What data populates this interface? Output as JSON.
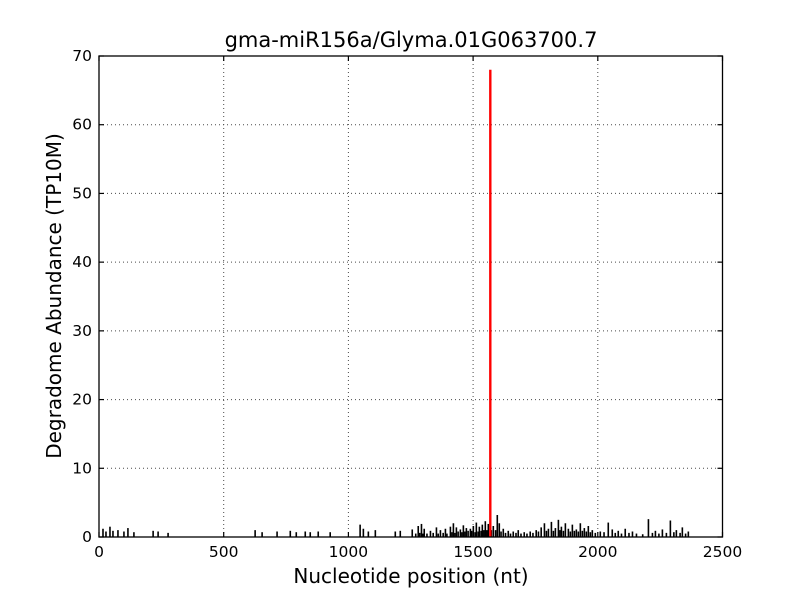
{
  "figure": {
    "title": "gma-miR156a/Glyma.01G063700.7",
    "xlabel": "Nucleotide position (nt)",
    "ylabel": "Degradome Abundance (TP10M)"
  },
  "chart_data": {
    "type": "bar",
    "title": "gma-miR156a/Glyma.01G063700.7",
    "xlabel": "Nucleotide position (nt)",
    "ylabel": "Degradome Abundance (TP10M)",
    "xlim": [
      0,
      2500
    ],
    "ylim": [
      0,
      70
    ],
    "x_ticks": [
      0,
      500,
      1000,
      1500,
      2000,
      2500
    ],
    "y_ticks": [
      0,
      10,
      20,
      30,
      40,
      50,
      60,
      70
    ],
    "grid": true,
    "grid_style": "dotted",
    "legend_position": "none",
    "colors": {
      "background": "#ffffff",
      "frame": "#000000",
      "grid": "#4a4a4a",
      "noise": "#000000",
      "peak": "#ff0000"
    },
    "peak": {
      "x": 1569,
      "value": 68,
      "color": "#ff0000"
    },
    "noise_points": [
      [
        16,
        1.2
      ],
      [
        28,
        0.8
      ],
      [
        44,
        1.5
      ],
      [
        56,
        0.9
      ],
      [
        76,
        1.0
      ],
      [
        100,
        0.8
      ],
      [
        116,
        1.3
      ],
      [
        140,
        0.7
      ],
      [
        217,
        0.9
      ],
      [
        237,
        0.8
      ],
      [
        277,
        0.6
      ],
      [
        626,
        1.0
      ],
      [
        654,
        0.7
      ],
      [
        714,
        0.8
      ],
      [
        767,
        0.9
      ],
      [
        791,
        0.7
      ],
      [
        827,
        0.8
      ],
      [
        847,
        0.7
      ],
      [
        879,
        0.8
      ],
      [
        927,
        0.7
      ],
      [
        1047,
        1.8
      ],
      [
        1060,
        1.2
      ],
      [
        1080,
        0.8
      ],
      [
        1108,
        1.0
      ],
      [
        1188,
        0.8
      ],
      [
        1208,
        0.9
      ],
      [
        1256,
        1.1
      ],
      [
        1270,
        0.5
      ],
      [
        1280,
        1.6
      ],
      [
        1286,
        0.6
      ],
      [
        1293,
        1.9
      ],
      [
        1298,
        0.5
      ],
      [
        1304,
        1.2
      ],
      [
        1315,
        0.5
      ],
      [
        1329,
        0.9
      ],
      [
        1340,
        0.6
      ],
      [
        1353,
        1.4
      ],
      [
        1360,
        0.5
      ],
      [
        1369,
        1.0
      ],
      [
        1380,
        0.6
      ],
      [
        1389,
        1.2
      ],
      [
        1395,
        0.5
      ],
      [
        1409,
        1.5
      ],
      [
        1415,
        0.7
      ],
      [
        1421,
        2.0
      ],
      [
        1427,
        0.6
      ],
      [
        1433,
        1.4
      ],
      [
        1440,
        0.8
      ],
      [
        1449,
        1.1
      ],
      [
        1455,
        0.7
      ],
      [
        1461,
        1.7
      ],
      [
        1467,
        0.8
      ],
      [
        1473,
        1.3
      ],
      [
        1480,
        0.9
      ],
      [
        1489,
        1.2
      ],
      [
        1494,
        0.9
      ],
      [
        1501,
        1.6
      ],
      [
        1508,
        0.7
      ],
      [
        1513,
        2.1
      ],
      [
        1520,
        0.8
      ],
      [
        1525,
        1.5
      ],
      [
        1532,
        0.9
      ],
      [
        1537,
        1.8
      ],
      [
        1543,
        1.0
      ],
      [
        1549,
        2.3
      ],
      [
        1555,
        1.0
      ],
      [
        1561,
        1.9
      ],
      [
        1573,
        1.0
      ],
      [
        1581,
        1.6
      ],
      [
        1590,
        1.0
      ],
      [
        1597,
        3.2
      ],
      [
        1605,
        2.0
      ],
      [
        1612,
        0.8
      ],
      [
        1621,
        1.2
      ],
      [
        1630,
        0.6
      ],
      [
        1641,
        0.9
      ],
      [
        1650,
        0.5
      ],
      [
        1661,
        0.8
      ],
      [
        1672,
        0.6
      ],
      [
        1681,
        1.0
      ],
      [
        1692,
        0.5
      ],
      [
        1705,
        0.7
      ],
      [
        1716,
        0.5
      ],
      [
        1729,
        0.8
      ],
      [
        1740,
        0.6
      ],
      [
        1753,
        1.0
      ],
      [
        1762,
        0.8
      ],
      [
        1773,
        1.4
      ],
      [
        1786,
        2.0
      ],
      [
        1794,
        0.9
      ],
      [
        1802,
        1.2
      ],
      [
        1814,
        2.2
      ],
      [
        1822,
        0.9
      ],
      [
        1830,
        1.3
      ],
      [
        1842,
        2.5
      ],
      [
        1848,
        1.0
      ],
      [
        1854,
        1.5
      ],
      [
        1862,
        0.9
      ],
      [
        1870,
        2.0
      ],
      [
        1882,
        1.2
      ],
      [
        1890,
        0.8
      ],
      [
        1898,
        1.8
      ],
      [
        1906,
        0.9
      ],
      [
        1914,
        1.1
      ],
      [
        1922,
        0.8
      ],
      [
        1930,
        2.0
      ],
      [
        1938,
        0.9
      ],
      [
        1946,
        1.3
      ],
      [
        1954,
        0.8
      ],
      [
        1962,
        1.6
      ],
      [
        1970,
        0.7
      ],
      [
        1978,
        1.0
      ],
      [
        1990,
        0.6
      ],
      [
        2010,
        0.8
      ],
      [
        2025,
        0.7
      ],
      [
        2042,
        2.1
      ],
      [
        2058,
        1.1
      ],
      [
        2070,
        0.6
      ],
      [
        2082,
        0.9
      ],
      [
        2095,
        0.5
      ],
      [
        2110,
        1.2
      ],
      [
        2125,
        0.6
      ],
      [
        2139,
        0.8
      ],
      [
        2155,
        0.5
      ],
      [
        2180,
        0.4
      ],
      [
        2203,
        2.6
      ],
      [
        2219,
        0.6
      ],
      [
        2231,
        0.9
      ],
      [
        2245,
        0.5
      ],
      [
        2259,
        1.1
      ],
      [
        2275,
        0.6
      ],
      [
        2291,
        2.4
      ],
      [
        2305,
        0.7
      ],
      [
        2315,
        1.0
      ],
      [
        2330,
        0.6
      ],
      [
        2339,
        1.4
      ],
      [
        2352,
        0.5
      ],
      [
        2363,
        0.8
      ]
    ]
  }
}
